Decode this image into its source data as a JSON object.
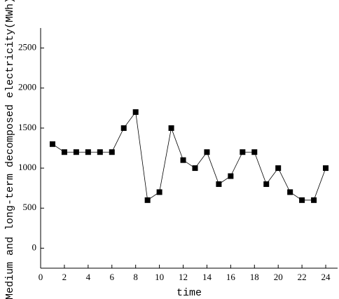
{
  "chart_data": {
    "type": "line",
    "x_label": "time",
    "y_label": "Medium and long-term decomposed electricity(MWh)",
    "x": [
      1,
      2,
      3,
      4,
      5,
      6,
      7,
      8,
      9,
      10,
      11,
      12,
      13,
      14,
      15,
      16,
      17,
      18,
      19,
      20,
      21,
      22,
      23,
      24
    ],
    "values": [
      1300,
      1200,
      1200,
      1200,
      1200,
      1200,
      1500,
      1700,
      600,
      700,
      1500,
      1100,
      1000,
      1200,
      800,
      900,
      1200,
      1200,
      800,
      1000,
      700,
      600,
      600,
      1000
    ],
    "color": "#000000",
    "xlim": [
      0,
      25
    ],
    "xticks": [
      0,
      2,
      4,
      6,
      8,
      10,
      12,
      14,
      16,
      18,
      20,
      22,
      24
    ],
    "ylim": [
      -250,
      2750
    ],
    "yticks": [
      0,
      500,
      1000,
      1500,
      2000,
      2500
    ]
  }
}
